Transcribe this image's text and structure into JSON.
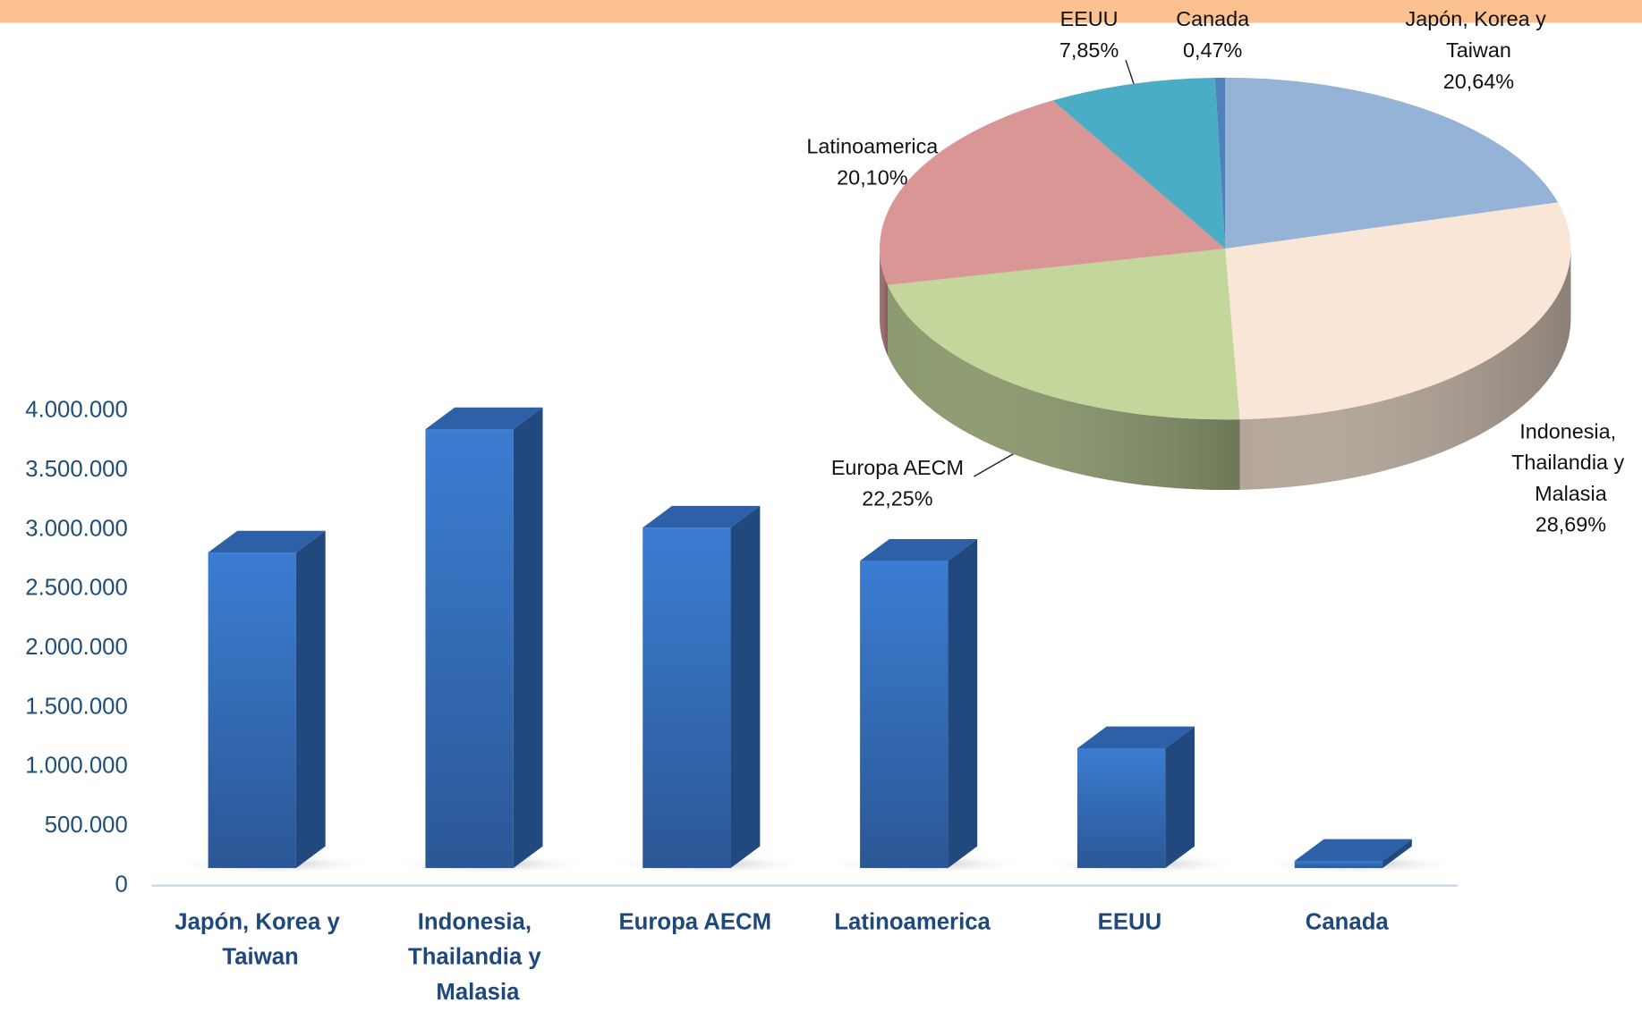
{
  "chart_data": [
    {
      "type": "bar3d",
      "categories": [
        "Japón, Korea y Taiwan",
        "Indonesia, Thailandia y Malasia",
        "Europa AECM",
        "Latinoamerica",
        "EEUU",
        "Canada"
      ],
      "values": [
        2660000,
        3700000,
        2870000,
        2590000,
        1010000,
        60000
      ],
      "color": "#3a78c9",
      "ylim": [
        0,
        4000000
      ],
      "yticks": [
        0,
        {
          "value": 500000,
          "label": "500.000"
        },
        {
          "value": 1000000,
          "label": "1.000.000"
        },
        {
          "value": 1500000,
          "label": "1.500.000"
        },
        {
          "value": 2000000,
          "label": "2.000.000"
        },
        {
          "value": 2500000,
          "label": "2.500.000"
        },
        {
          "value": 3000000,
          "label": "3.000.000"
        },
        {
          "value": 3500000,
          "label": "3.500.000"
        },
        {
          "value": 4000000,
          "label": "4.000.000"
        }
      ]
    },
    {
      "type": "pie3d",
      "categories": [
        "Japón, Korea y Taiwan",
        "Indonesia, Thailandia y Malasia",
        "Europa AECM",
        "Latinoamerica",
        "EEUU",
        "Canada"
      ],
      "values": [
        20.64,
        28.69,
        22.25,
        20.1,
        7.85,
        0.47
      ],
      "value_labels": [
        "20,64%",
        "28,69%",
        "22,25%",
        "20,10%",
        "7,85%",
        "0,47%"
      ],
      "colors": [
        "#95b3d7",
        "#fae6d6",
        "#c3d69b",
        "#d99694",
        "#4bacc6",
        "#4f81bd"
      ]
    }
  ]
}
